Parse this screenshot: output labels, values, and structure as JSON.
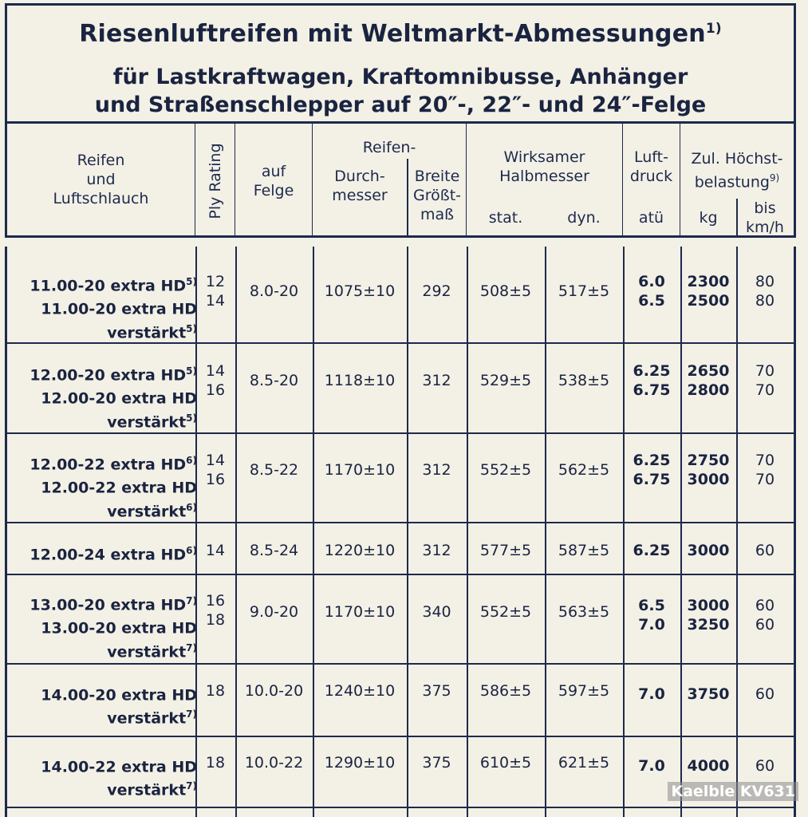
{
  "title": {
    "line1": "Riesenluftreifen mit Weltmarkt-Abmessungen",
    "line1_note": "1)",
    "line2": "für Lastkraftwagen, Kraftomnibusse, Anhänger",
    "line3": "und Straßenschlepper auf 20″-, 22″- und 24″-Felge"
  },
  "header": {
    "reifen": [
      "Reifen",
      "und",
      "Luftschlauch"
    ],
    "ply": "Ply Rating",
    "felge": [
      "auf",
      "Felge"
    ],
    "reifen_group": "Reifen-",
    "durchmesser": [
      "Durch-",
      "messer"
    ],
    "breite": [
      "Breite",
      "Größt-",
      "maß"
    ],
    "halbmesser": [
      "Wirksamer",
      "Halbmesser"
    ],
    "stat": "stat.",
    "dyn": "dyn.",
    "luftdruck": [
      "Luft-",
      "druck"
    ],
    "atue": "atü",
    "hoechst": [
      "Zul. Höchst-",
      "belastung"
    ],
    "hoechst_note": "9)",
    "kg": "kg",
    "kmh": [
      "bis",
      "km/h"
    ]
  },
  "rows": [
    {
      "tyre": [
        [
          "11.00-20 extra HD",
          "5)"
        ],
        [
          "11.00-20 extra HD",
          ""
        ],
        [
          "verstärkt",
          "5)"
        ]
      ],
      "ply": [
        "12",
        "14"
      ],
      "felge": "8.0-20",
      "durch": "1075±10",
      "breite": "292",
      "stat": "508±5",
      "dyn": "517±5",
      "luft": [
        "6.0",
        "6.5"
      ],
      "kg": [
        "2300",
        "2500"
      ],
      "kmh": [
        "80",
        "80"
      ]
    },
    {
      "tyre": [
        [
          "12.00-20 extra HD",
          "5)"
        ],
        [
          "12.00-20 extra HD",
          ""
        ],
        [
          "verstärkt",
          "5)"
        ]
      ],
      "ply": [
        "14",
        "16"
      ],
      "felge": "8.5-20",
      "durch": "1118±10",
      "breite": "312",
      "stat": "529±5",
      "dyn": "538±5",
      "luft": [
        "6.25",
        "6.75"
      ],
      "kg": [
        "2650",
        "2800"
      ],
      "kmh": [
        "70",
        "70"
      ]
    },
    {
      "tyre": [
        [
          "12.00-22 extra HD",
          "6)"
        ],
        [
          "12.00-22 extra HD",
          ""
        ],
        [
          "verstärkt",
          "6)"
        ]
      ],
      "ply": [
        "14",
        "16"
      ],
      "felge": "8.5-22",
      "durch": "1170±10",
      "breite": "312",
      "stat": "552±5",
      "dyn": "562±5",
      "luft": [
        "6.25",
        "6.75"
      ],
      "kg": [
        "2750",
        "3000"
      ],
      "kmh": [
        "70",
        "70"
      ]
    },
    {
      "tyre": [
        [
          "12.00-24 extra HD",
          "6)"
        ]
      ],
      "ply": [
        "14"
      ],
      "felge": "8.5-24",
      "durch": "1220±10",
      "breite": "312",
      "stat": "577±5",
      "dyn": "587±5",
      "luft": [
        "6.25"
      ],
      "kg": [
        "3000"
      ],
      "kmh": [
        "60"
      ]
    },
    {
      "tyre": [
        [
          "13.00-20 extra HD",
          "7)"
        ],
        [
          "13.00-20 extra HD",
          ""
        ],
        [
          "verstärkt",
          "7)"
        ]
      ],
      "ply": [
        "16",
        "18"
      ],
      "felge": "9.0-20",
      "durch": "1170±10",
      "breite": "340",
      "stat": "552±5",
      "dyn": "563±5",
      "luft": [
        "6.5",
        "7.0"
      ],
      "kg": [
        "3000",
        "3250"
      ],
      "kmh": [
        "60",
        "60"
      ]
    },
    {
      "tyre": [
        [
          "14.00-20 extra HD",
          ""
        ],
        [
          "verstärkt",
          "7)"
        ]
      ],
      "ply": [
        "18"
      ],
      "felge": "10.0-20",
      "durch": "1240±10",
      "breite": "375",
      "stat": "586±5",
      "dyn": "597±5",
      "luft": [
        "7.0"
      ],
      "kg": [
        "3750"
      ],
      "kmh": [
        "60"
      ]
    },
    {
      "tyre": [
        [
          "14.00-22 extra HD",
          ""
        ],
        [
          "verstärkt",
          "7)"
        ]
      ],
      "ply": [
        "18"
      ],
      "felge": "10.0-22",
      "durch": "1290±10",
      "breite": "375",
      "stat": "610±5",
      "dyn": "621±5",
      "luft": [
        "7.0"
      ],
      "kg": [
        "4000"
      ],
      "kmh": [
        "60"
      ]
    }
  ],
  "watermark": "Kaelble KV631"
}
